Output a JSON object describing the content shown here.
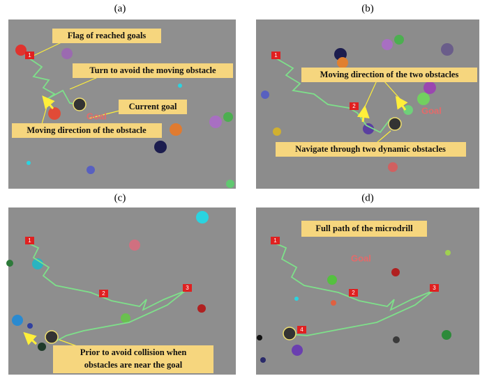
{
  "panels": [
    {
      "label": "(a)",
      "annotations": [
        "Flag of reached goals",
        "Turn to avoid the moving obstacle",
        "Current goal",
        "Moving direction of the obstacle"
      ],
      "flags": [
        "1"
      ],
      "goal": "Goal"
    },
    {
      "label": "(b)",
      "annotations": [
        "Moving direction of the two obstacles",
        "Navigate through two dynamic obstacles"
      ],
      "flags": [
        "1",
        "2"
      ],
      "goal": "Goal"
    },
    {
      "label": "(c)",
      "annotations": [
        [
          "Prior to avoid collision when",
          "obstacles are near the goal"
        ]
      ],
      "flags": [
        "1",
        "2",
        "3"
      ]
    },
    {
      "label": "(d)",
      "annotations": [
        "Full path of the microdrill"
      ],
      "flags": [
        "1",
        "2",
        "3",
        "4"
      ],
      "goal": "Goal"
    }
  ]
}
